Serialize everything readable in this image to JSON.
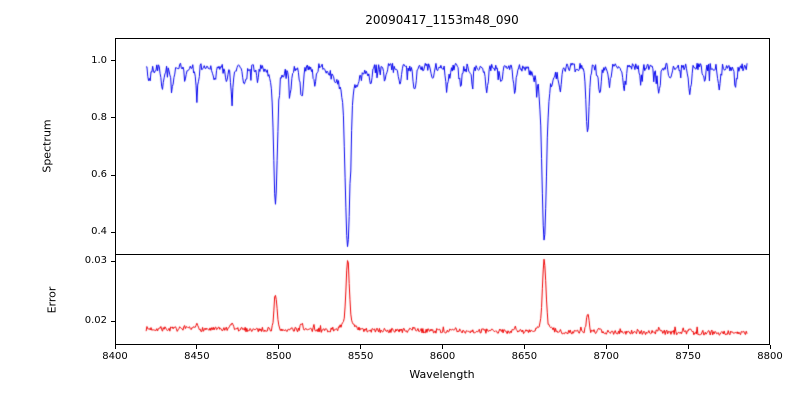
{
  "chart_data": {
    "type": "line",
    "title": "20090417_1153m48_090",
    "xlabel": "Wavelength",
    "xlim": [
      8400,
      8800
    ],
    "grid": false,
    "legend": "none",
    "x_ticks": [
      {
        "value": 8400,
        "label": "8400"
      },
      {
        "value": 8450,
        "label": "8450"
      },
      {
        "value": 8500,
        "label": "8500"
      },
      {
        "value": 8550,
        "label": "8550"
      },
      {
        "value": 8600,
        "label": "8600"
      },
      {
        "value": 8650,
        "label": "8650"
      },
      {
        "value": 8700,
        "label": "8700"
      },
      {
        "value": 8750,
        "label": "8750"
      },
      {
        "value": 8800,
        "label": "8800"
      }
    ],
    "panels": [
      {
        "name": "spectrum",
        "ylabel": "Spectrum",
        "ylim": [
          0.32,
          1.08
        ],
        "y_ticks": [
          {
            "value": 0.4,
            "label": "0.4"
          },
          {
            "value": 0.6,
            "label": "0.6"
          },
          {
            "value": 0.8,
            "label": "0.8"
          },
          {
            "value": 1.0,
            "label": "1.0"
          }
        ],
        "color": "#0000ee",
        "x_start": 8419,
        "x_end": 8786,
        "x_step": 0.5,
        "baseline_start": 0.978,
        "baseline_end": 0.978,
        "noise": 0.014,
        "spike_prob": 0.1,
        "spike_max": 0.05,
        "spike_dir": -1,
        "seed": 42,
        "features": [
          {
            "c": 8498.0,
            "a": -0.43,
            "s": 1.1
          },
          {
            "c": 8498.0,
            "a": -0.05,
            "s": 4.0
          },
          {
            "c": 8542.1,
            "a": -0.55,
            "s": 1.4
          },
          {
            "c": 8542.1,
            "a": -0.09,
            "s": 6.0
          },
          {
            "c": 8662.1,
            "a": -0.53,
            "s": 1.3
          },
          {
            "c": 8662.1,
            "a": -0.08,
            "s": 5.0
          },
          {
            "c": 8688.6,
            "a": -0.22,
            "s": 1.0
          },
          {
            "c": 8421,
            "a": -0.05,
            "s": 0.8
          },
          {
            "c": 8429,
            "a": -0.07,
            "s": 0.9
          },
          {
            "c": 8435,
            "a": -0.08,
            "s": 0.8
          },
          {
            "c": 8443,
            "a": -0.05,
            "s": 0.7
          },
          {
            "c": 8450,
            "a": -0.08,
            "s": 0.9
          },
          {
            "c": 8461,
            "a": -0.05,
            "s": 0.8
          },
          {
            "c": 8468,
            "a": -0.06,
            "s": 0.7
          },
          {
            "c": 8471.5,
            "a": -0.09,
            "s": 0.9
          },
          {
            "c": 8479,
            "a": -0.06,
            "s": 0.8
          },
          {
            "c": 8487,
            "a": -0.04,
            "s": 0.7
          },
          {
            "c": 8507,
            "a": -0.08,
            "s": 0.9
          },
          {
            "c": 8514,
            "a": -0.1,
            "s": 1.0
          },
          {
            "c": 8522,
            "a": -0.06,
            "s": 0.8
          },
          {
            "c": 8556,
            "a": -0.05,
            "s": 0.8
          },
          {
            "c": 8565,
            "a": -0.05,
            "s": 0.7
          },
          {
            "c": 8574,
            "a": -0.06,
            "s": 0.8
          },
          {
            "c": 8583,
            "a": -0.08,
            "s": 0.9
          },
          {
            "c": 8594,
            "a": -0.05,
            "s": 0.7
          },
          {
            "c": 8603,
            "a": -0.07,
            "s": 0.9
          },
          {
            "c": 8611,
            "a": -0.06,
            "s": 0.8
          },
          {
            "c": 8618,
            "a": -0.05,
            "s": 0.7
          },
          {
            "c": 8627,
            "a": -0.08,
            "s": 0.9
          },
          {
            "c": 8636,
            "a": -0.05,
            "s": 0.7
          },
          {
            "c": 8644,
            "a": -0.08,
            "s": 0.9
          },
          {
            "c": 8672,
            "a": -0.07,
            "s": 0.8
          },
          {
            "c": 8696,
            "a": -0.09,
            "s": 0.9
          },
          {
            "c": 8702,
            "a": -0.06,
            "s": 0.7
          },
          {
            "c": 8711,
            "a": -0.07,
            "s": 0.8
          },
          {
            "c": 8721,
            "a": -0.05,
            "s": 0.7
          },
          {
            "c": 8732,
            "a": -0.08,
            "s": 0.9
          },
          {
            "c": 8739,
            "a": -0.05,
            "s": 0.7
          },
          {
            "c": 8751,
            "a": -0.09,
            "s": 0.9
          },
          {
            "c": 8760,
            "a": -0.05,
            "s": 0.7
          },
          {
            "c": 8769,
            "a": -0.07,
            "s": 0.8
          },
          {
            "c": 8779,
            "a": -0.06,
            "s": 0.8
          }
        ]
      },
      {
        "name": "error",
        "ylabel": "Error",
        "ylim": [
          0.016,
          0.031
        ],
        "y_ticks": [
          {
            "value": 0.02,
            "label": "0.02"
          },
          {
            "value": 0.03,
            "label": "0.03"
          }
        ],
        "color": "#ee0000",
        "x_start": 8419,
        "x_end": 8786,
        "x_step": 0.5,
        "baseline_start": 0.0187,
        "baseline_end": 0.018,
        "noise": 0.0004,
        "spike_prob": 0.05,
        "spike_max": 0.0008,
        "spike_dir": 1,
        "seed": 7,
        "features": [
          {
            "c": 8498.0,
            "a": 0.006,
            "s": 0.9
          },
          {
            "c": 8542.1,
            "a": 0.0105,
            "s": 1.0
          },
          {
            "c": 8542.1,
            "a": 0.0012,
            "s": 3.5
          },
          {
            "c": 8662.1,
            "a": 0.0105,
            "s": 1.0
          },
          {
            "c": 8662.1,
            "a": 0.0012,
            "s": 3.5
          },
          {
            "c": 8688.6,
            "a": 0.003,
            "s": 0.8
          },
          {
            "c": 8450,
            "a": 0.0007,
            "s": 0.8
          },
          {
            "c": 8471.5,
            "a": 0.0009,
            "s": 0.8
          },
          {
            "c": 8514,
            "a": 0.0011,
            "s": 0.9
          },
          {
            "c": 8583,
            "a": 0.0006,
            "s": 0.8
          },
          {
            "c": 8644,
            "a": 0.0007,
            "s": 0.8
          },
          {
            "c": 8696,
            "a": 0.0008,
            "s": 0.8
          },
          {
            "c": 8732,
            "a": 0.0006,
            "s": 0.8
          },
          {
            "c": 8751,
            "a": 0.0007,
            "s": 0.8
          }
        ]
      }
    ]
  }
}
